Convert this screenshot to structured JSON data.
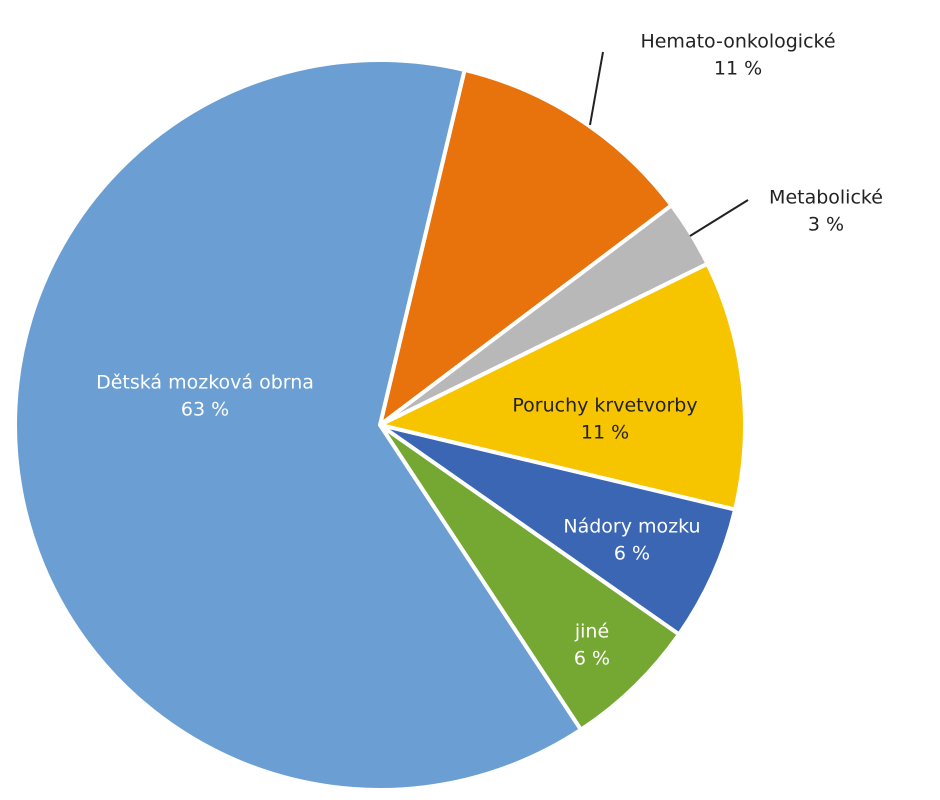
{
  "chart_data": {
    "type": "pie",
    "categories": [
      "Hemato-onkologické",
      "Metabolické",
      "Poruchy krvetvorby",
      "Nádory mozku",
      "jiné",
      "Dětská mozková obrna"
    ],
    "values": [
      11,
      3,
      11,
      6,
      6,
      63
    ],
    "value_labels": [
      "11 %",
      "3 %",
      "11 %",
      "6 %",
      "6 %",
      "63 %"
    ],
    "colors": [
      "#e8720c",
      "#b8b8b8",
      "#f7c400",
      "#3b66b4",
      "#74a833",
      "#6b9fd3"
    ]
  }
}
